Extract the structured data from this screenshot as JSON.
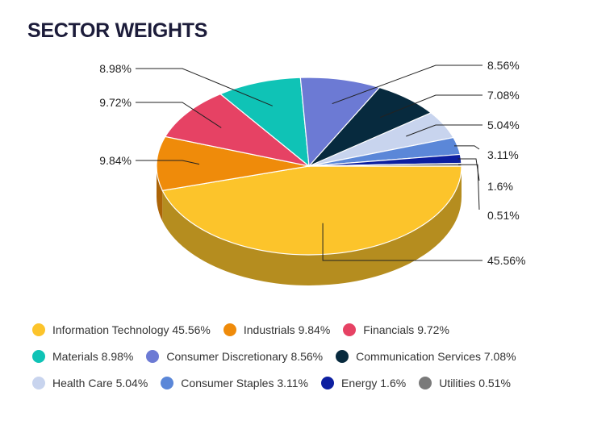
{
  "title": "SECTOR WEIGHTS",
  "chart_data": {
    "type": "pie",
    "title": "SECTOR WEIGHTS",
    "slices": [
      {
        "name": "Information Technology",
        "value": 45.56,
        "label": "45.56%",
        "color": "#fcc42b"
      },
      {
        "name": "Industrials",
        "value": 9.84,
        "label": "9.84%",
        "color": "#ef8b0a"
      },
      {
        "name": "Financials",
        "value": 9.72,
        "label": "9.72%",
        "color": "#e64264"
      },
      {
        "name": "Materials",
        "value": 8.98,
        "label": "8.98%",
        "color": "#0fc3b6"
      },
      {
        "name": "Consumer Discretionary",
        "value": 8.56,
        "label": "8.56%",
        "color": "#6c7ad4"
      },
      {
        "name": "Communication Services",
        "value": 7.08,
        "label": "7.08%",
        "color": "#072a3e"
      },
      {
        "name": "Health Care",
        "value": 5.04,
        "label": "5.04%",
        "color": "#c8d4ee"
      },
      {
        "name": "Consumer Staples",
        "value": 3.11,
        "label": "3.11%",
        "color": "#5b87d8"
      },
      {
        "name": "Energy",
        "value": 1.6,
        "label": "1.6%",
        "color": "#0d1fa0"
      },
      {
        "name": "Utilities",
        "value": 0.51,
        "label": "0.51%",
        "color": "#7a7a7a"
      }
    ]
  },
  "legend": [
    [
      {
        "text": "Information Technology 45.56%",
        "color": "#fcc42b"
      },
      {
        "text": "Industrials 9.84%",
        "color": "#ef8b0a"
      },
      {
        "text": "Financials 9.72%",
        "color": "#e64264"
      }
    ],
    [
      {
        "text": "Materials 8.98%",
        "color": "#0fc3b6"
      },
      {
        "text": "Consumer Discretionary 8.56%",
        "color": "#6c7ad4"
      },
      {
        "text": "Communication Services 7.08%",
        "color": "#072a3e"
      }
    ],
    [
      {
        "text": "Health Care 5.04%",
        "color": "#c8d4ee"
      },
      {
        "text": "Consumer Staples 3.11%",
        "color": "#5b87d8"
      },
      {
        "text": "Energy 1.6%",
        "color": "#0d1fa0"
      },
      {
        "text": "Utilities 0.51%",
        "color": "#7a7a7a"
      }
    ]
  ]
}
